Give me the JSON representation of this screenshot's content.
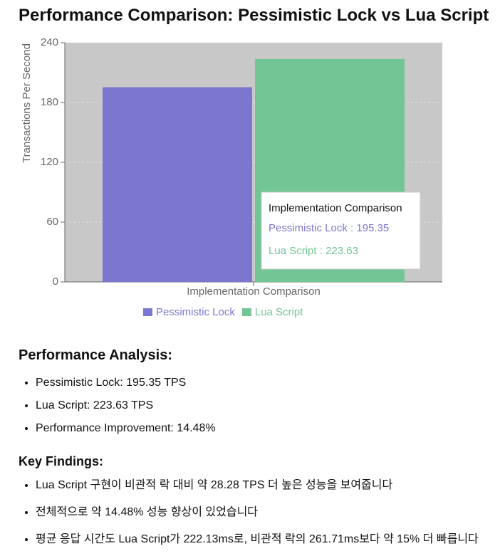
{
  "chart_data": {
    "type": "bar",
    "title": "Performance Comparison: Pessimistic Lock vs Lua Script",
    "categories": [
      "Implementation Comparison"
    ],
    "x_label": "Implementation Comparison",
    "y_label": "Transactions Per Second",
    "series": [
      {
        "name": "Pessimistic Lock",
        "color": "#7b77d1",
        "values": [
          195.35
        ]
      },
      {
        "name": "Lua Script",
        "color": "#72c594",
        "values": [
          223.63
        ]
      }
    ],
    "ylim": [
      0,
      240
    ],
    "yticks": [
      0,
      60,
      120,
      180,
      240
    ],
    "grid": true,
    "background": "#c8c8c8"
  },
  "analysis": {
    "heading": "Performance Analysis:",
    "items": [
      "Pessimistic Lock: 195.35 TPS",
      "Lua Script: 223.63 TPS",
      "Performance Improvement: 14.48%"
    ]
  },
  "findings": {
    "heading": "Key Findings:",
    "items": [
      "Lua Script 구현이 비관적 락 대비 약 28.28 TPS 더 높은 성능을 보여줍니다",
      "전체적으로 약 14.48% 성능 향상이 있었습니다",
      "평균 응답 시간도 Lua Script가 222.13ms로, 비관적 락의 261.71ms보다 약 15% 더 빠릅니다"
    ]
  }
}
